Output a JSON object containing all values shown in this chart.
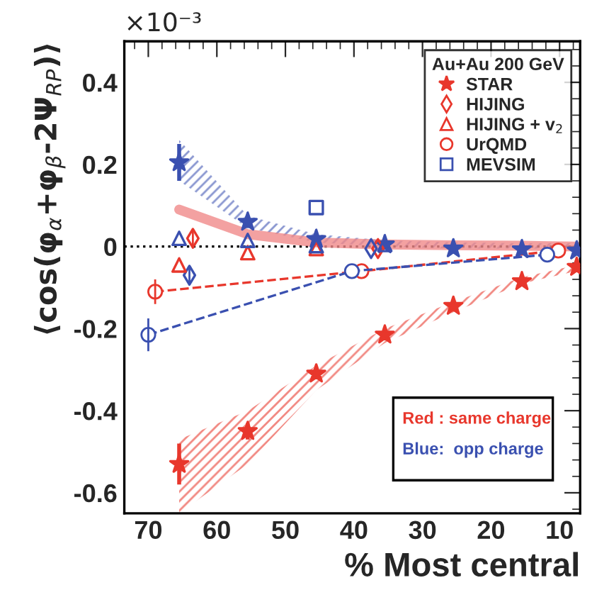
{
  "chart_data": {
    "type": "scatter",
    "xlabel": "% Most central",
    "ylabel": "⟨cos(φ$_{α}$+φ$_{β}$-2Ψ$_{RP}$)⟩",
    "legend_title": "Au+Au 200 GeV",
    "xlim": [
      73.5,
      7
    ],
    "xticks": [
      70,
      60,
      50,
      40,
      30,
      20,
      10
    ],
    "ylim": [
      -0.65,
      0.5
    ],
    "yticks": [
      -0.6,
      -0.4,
      -0.2,
      0,
      0.2,
      0.4
    ],
    "legend": "top right",
    "grid": false,
    "ref_lines": [
      {
        "axis": "y",
        "value": 0,
        "color": "#000000",
        "line_style": "dotted"
      }
    ],
    "annotations": [
      "×10⁻³",
      "Red : same charge",
      "Blue:  opp charge"
    ],
    "series": [
      {
        "name": "STAR",
        "marker": "star",
        "color": "#e8372c",
        "x": [
          65.5,
          55.5,
          45.5,
          35.5,
          25.5,
          15.5,
          7.5
        ],
        "values": [
          -0.53,
          -0.45,
          -0.31,
          -0.215,
          -0.145,
          -0.085,
          -0.05
        ],
        "errors": [
          0.05,
          0.02,
          null,
          null,
          null,
          null,
          null
        ],
        "lower": [
          -0.65,
          -0.53,
          -0.35,
          -0.235,
          -0.16,
          -0.09,
          -0.06
        ],
        "upper": [
          -0.47,
          -0.4,
          -0.29,
          -0.2,
          -0.135,
          -0.075,
          -0.045
        ]
      },
      {
        "marker": "star",
        "color": "#3a50b0",
        "x": [
          65.5,
          55.5,
          45.5,
          35.5,
          25.5,
          15.5,
          7.5
        ],
        "values": [
          0.205,
          0.06,
          0.018,
          0.005,
          -0.005,
          -0.007,
          -0.01
        ],
        "errors": [
          0.045,
          0.015,
          null,
          null,
          null,
          null,
          null
        ],
        "lower": [
          0.16,
          0.045,
          0.01,
          0.0,
          -0.005,
          -0.005,
          -0.005
        ],
        "upper": [
          0.26,
          0.075,
          0.03,
          0.015,
          0.01,
          0.008,
          0.008
        ]
      },
      {
        "type": "line",
        "marker": "none",
        "line_style": "solid",
        "color": "#f08a8a",
        "x": [
          65.5,
          55.5,
          45.5,
          35.5,
          25.5,
          15.5,
          7.5
        ],
        "values": [
          0.09,
          0.03,
          0.01,
          0.005,
          0.003,
          0.002,
          0.0
        ]
      },
      {
        "name": "HIJING",
        "marker": "diamond",
        "color": "#e8372c",
        "x": [
          63.5,
          36.5
        ],
        "values": [
          0.02,
          -0.005
        ],
        "errors": [
          0.02,
          null
        ]
      },
      {
        "marker": "diamond",
        "color": "#3a50b0",
        "x": [
          64.0,
          37.5
        ],
        "values": [
          -0.07,
          -0.005
        ],
        "errors": [
          0.02,
          null
        ]
      },
      {
        "name": "HIJING + v$_{2}$",
        "marker": "triangle",
        "color": "#e8372c",
        "x": [
          65.5,
          55.5,
          45.5
        ],
        "values": [
          -0.045,
          -0.015,
          -0.005
        ]
      },
      {
        "marker": "triangle",
        "color": "#3a50b0",
        "x": [
          65.5,
          55.5,
          45.5,
          35.5
        ],
        "values": [
          0.02,
          0.015,
          0.002,
          0.005
        ]
      },
      {
        "name": "UrQMD",
        "type": "line",
        "marker": "circle",
        "line_style": "dashed",
        "color": "#e8372c",
        "x": [
          69,
          38.9,
          10.2
        ],
        "values": [
          -0.11,
          -0.06,
          -0.01
        ],
        "errors": [
          0.03,
          null,
          null
        ]
      },
      {
        "type": "line",
        "marker": "circle",
        "line_style": "dashed",
        "color": "#3a50b0",
        "x": [
          70,
          40.3,
          11.8
        ],
        "values": [
          -0.215,
          -0.06,
          -0.02
        ],
        "errors": [
          0.04,
          null,
          null
        ]
      },
      {
        "name": "MEVSIM",
        "marker": "square",
        "color": "#3a50b0",
        "x": [
          45.5
        ],
        "values": [
          0.095
        ]
      }
    ]
  }
}
